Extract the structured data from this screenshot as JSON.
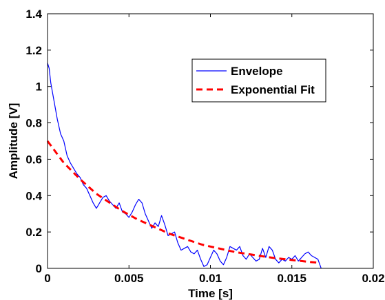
{
  "chart_data": {
    "type": "line",
    "title": "",
    "xlabel": "Time [s]",
    "ylabel": "Amplitude [V]",
    "xlim": [
      0,
      0.02
    ],
    "ylim": [
      0,
      1.4
    ],
    "xticks": [
      0,
      0.005,
      0.01,
      0.015,
      0.02
    ],
    "xtick_labels": [
      "0",
      "0.005",
      "0.01",
      "0.015",
      "0.02"
    ],
    "yticks": [
      0,
      0.2,
      0.4,
      0.6,
      0.8,
      1,
      1.2,
      1.4
    ],
    "ytick_labels": [
      "0",
      "0.2",
      "0.4",
      "0.6",
      "0.8",
      "1",
      "1.2",
      "1.4"
    ],
    "grid": false,
    "legend_position": "top-right",
    "series": [
      {
        "name": "Envelope",
        "color": "#0000ff",
        "style": "solid",
        "x": [
          0,
          0.0001,
          0.0002,
          0.0004,
          0.0006,
          0.0008,
          0.001,
          0.0012,
          0.0014,
          0.0016,
          0.0018,
          0.002,
          0.0022,
          0.0024,
          0.0026,
          0.0028,
          0.003,
          0.0032,
          0.0034,
          0.0036,
          0.0038,
          0.004,
          0.0042,
          0.0044,
          0.0046,
          0.0048,
          0.005,
          0.0052,
          0.0054,
          0.0056,
          0.0058,
          0.006,
          0.0062,
          0.0064,
          0.0066,
          0.0068,
          0.007,
          0.0072,
          0.0074,
          0.0076,
          0.0078,
          0.008,
          0.0082,
          0.0084,
          0.0086,
          0.0088,
          0.009,
          0.0092,
          0.0094,
          0.0096,
          0.0098,
          0.01,
          0.0102,
          0.0104,
          0.0106,
          0.0108,
          0.011,
          0.0112,
          0.0114,
          0.0116,
          0.0118,
          0.012,
          0.0122,
          0.0124,
          0.0126,
          0.0128,
          0.013,
          0.0132,
          0.0134,
          0.0136,
          0.0138,
          0.014,
          0.0142,
          0.0144,
          0.0146,
          0.0148,
          0.015,
          0.0152,
          0.0154,
          0.0156,
          0.0158,
          0.016,
          0.0162,
          0.0164,
          0.0166,
          0.0168
        ],
        "y": [
          1.13,
          1.1,
          1.02,
          0.92,
          0.82,
          0.74,
          0.7,
          0.62,
          0.58,
          0.55,
          0.52,
          0.5,
          0.46,
          0.44,
          0.4,
          0.36,
          0.33,
          0.36,
          0.39,
          0.4,
          0.37,
          0.35,
          0.33,
          0.36,
          0.31,
          0.3,
          0.28,
          0.31,
          0.35,
          0.38,
          0.36,
          0.3,
          0.26,
          0.22,
          0.25,
          0.23,
          0.29,
          0.24,
          0.18,
          0.19,
          0.2,
          0.14,
          0.1,
          0.11,
          0.12,
          0.09,
          0.08,
          0.1,
          0.05,
          0.01,
          0.02,
          0.06,
          0.1,
          0.08,
          0.04,
          0.02,
          0.06,
          0.12,
          0.11,
          0.1,
          0.12,
          0.07,
          0.05,
          0.08,
          0.06,
          0.04,
          0.05,
          0.11,
          0.06,
          0.12,
          0.1,
          0.05,
          0.03,
          0.05,
          0.04,
          0.06,
          0.05,
          0.07,
          0.04,
          0.06,
          0.08,
          0.09,
          0.07,
          0.06,
          0.05,
          0.0
        ]
      },
      {
        "name": "Exponential Fit",
        "color": "#ff0000",
        "style": "dashed",
        "x": [
          0,
          0.0005,
          0.001,
          0.0015,
          0.002,
          0.0025,
          0.003,
          0.0035,
          0.004,
          0.0045,
          0.005,
          0.0055,
          0.006,
          0.0065,
          0.007,
          0.0075,
          0.008,
          0.0085,
          0.009,
          0.0095,
          0.01,
          0.0105,
          0.011,
          0.0115,
          0.012,
          0.0125,
          0.013,
          0.0135,
          0.014,
          0.0145,
          0.015,
          0.0155,
          0.016,
          0.0165
        ],
        "y": [
          0.7,
          0.64,
          0.58,
          0.535,
          0.49,
          0.45,
          0.41,
          0.38,
          0.35,
          0.32,
          0.295,
          0.27,
          0.25,
          0.23,
          0.21,
          0.19,
          0.175,
          0.16,
          0.145,
          0.13,
          0.12,
          0.11,
          0.1,
          0.09,
          0.083,
          0.076,
          0.069,
          0.062,
          0.056,
          0.051,
          0.046,
          0.041,
          0.036,
          0.032
        ]
      }
    ]
  }
}
